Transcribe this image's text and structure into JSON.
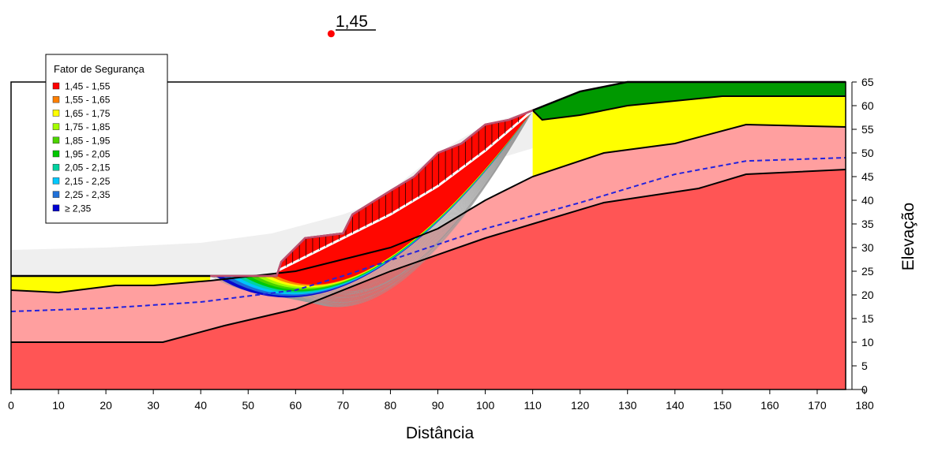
{
  "chart_data": {
    "type": "area",
    "title": "",
    "xlabel": "Distância",
    "ylabel": "Elevação",
    "xlim": [
      0,
      180
    ],
    "ylim": [
      0,
      65
    ],
    "x_ticks": [
      0,
      10,
      20,
      30,
      40,
      50,
      60,
      70,
      80,
      90,
      100,
      110,
      120,
      130,
      140,
      150,
      160,
      170,
      180
    ],
    "y_ticks": [
      0,
      5,
      10,
      15,
      20,
      25,
      30,
      35,
      40,
      45,
      50,
      55,
      60,
      65
    ],
    "grid": false,
    "critical_fos": {
      "label": "1,45",
      "x": 67.5,
      "y": 75.2,
      "color": "#ff0000"
    },
    "legend": {
      "title": "Fator de Segurança",
      "placement": "top-left",
      "items": [
        {
          "label": "1,45 - 1,55",
          "color": "#ff0000"
        },
        {
          "label": "1,55 - 1,65",
          "color": "#ff7f00"
        },
        {
          "label": "1,65 - 1,75",
          "color": "#ffff00"
        },
        {
          "label": "1,75 - 1,85",
          "color": "#a5ff00"
        },
        {
          "label": "1,85 - 1,95",
          "color": "#4cd400"
        },
        {
          "label": "1,95 - 2,05",
          "color": "#00c800"
        },
        {
          "label": "2,05 - 2,15",
          "color": "#00d2a0"
        },
        {
          "label": "2,15 - 2,25",
          "color": "#00c8ff"
        },
        {
          "label": "2,25 - 2,35",
          "color": "#2070d8"
        },
        {
          "label": "≥ 2,35",
          "color": "#0000d0"
        }
      ]
    },
    "layers": {
      "ground_surface": [
        [
          0,
          24
        ],
        [
          42,
          24
        ],
        [
          56,
          24
        ],
        [
          57,
          27
        ],
        [
          62,
          32
        ],
        [
          70,
          33
        ],
        [
          72,
          37
        ],
        [
          80,
          42
        ],
        [
          85,
          45
        ],
        [
          90,
          50
        ],
        [
          95,
          52
        ],
        [
          100,
          56
        ],
        [
          105,
          57
        ],
        [
          110,
          59
        ],
        [
          120,
          63
        ],
        [
          130,
          65
        ],
        [
          176,
          65
        ]
      ],
      "green_bottom": [
        [
          110,
          59
        ],
        [
          112,
          57
        ],
        [
          120,
          58
        ],
        [
          130,
          60
        ],
        [
          140,
          61
        ],
        [
          150,
          62
        ],
        [
          176,
          62
        ]
      ],
      "yellow_bottom": [
        [
          0,
          21
        ],
        [
          10,
          20.5
        ],
        [
          22,
          22
        ],
        [
          30,
          22
        ],
        [
          42,
          23
        ],
        [
          60,
          25
        ],
        [
          80,
          30
        ],
        [
          90,
          34
        ],
        [
          100,
          40
        ],
        [
          110,
          45
        ],
        [
          125,
          50
        ],
        [
          140,
          52
        ],
        [
          155,
          56
        ],
        [
          176,
          55.5
        ]
      ],
      "pink_bottom": [
        [
          0,
          10
        ],
        [
          32,
          10
        ],
        [
          45,
          13.5
        ],
        [
          60,
          17
        ],
        [
          80,
          25
        ],
        [
          100,
          32
        ],
        [
          110,
          35
        ],
        [
          125,
          39.5
        ],
        [
          145,
          42.5
        ],
        [
          155,
          45.5
        ],
        [
          176,
          46.5
        ]
      ],
      "light_gray_top": [
        [
          0,
          29.5
        ],
        [
          20,
          30
        ],
        [
          40,
          31
        ],
        [
          55,
          33
        ],
        [
          70,
          37
        ],
        [
          85,
          42.5
        ],
        [
          100,
          48
        ],
        [
          110,
          51
        ]
      ],
      "water_table": [
        [
          0,
          16.5
        ],
        [
          20,
          17.2
        ],
        [
          40,
          18.5
        ],
        [
          60,
          21
        ],
        [
          70,
          24
        ],
        [
          85,
          29
        ],
        [
          100,
          34
        ],
        [
          120,
          39.5
        ],
        [
          140,
          45.5
        ],
        [
          155,
          48.3
        ],
        [
          176,
          49
        ]
      ],
      "critical_slip": [
        [
          56,
          25
        ],
        [
          62,
          28
        ],
        [
          70,
          32
        ],
        [
          80,
          37
        ],
        [
          90,
          43
        ],
        [
          100,
          50.5
        ],
        [
          110,
          59
        ]
      ]
    },
    "layer_colors": {
      "top_layer": "#009900",
      "upper_layer": "#ffff00",
      "middle_layer": "#ff9f9f",
      "base_layer": "#ff5555",
      "slip_zone_area": "#efefef",
      "water_table": "#2222dd",
      "critical_surface": "#ffffff",
      "slice_lines": "#000000"
    }
  }
}
